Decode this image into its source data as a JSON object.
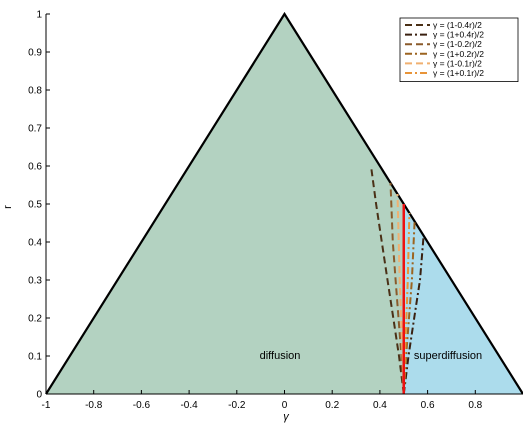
{
  "chart_data": {
    "type": "line",
    "xlabel": "γ",
    "ylabel": "r",
    "xlim": [
      -1,
      1
    ],
    "ylim": [
      0,
      1
    ],
    "x_ticks": [
      -1,
      -0.8,
      -0.6,
      -0.4,
      -0.2,
      0,
      0.2,
      0.4,
      0.6,
      0.8
    ],
    "y_ticks": [
      0,
      0.1,
      0.2,
      0.3,
      0.4,
      0.5,
      0.6,
      0.7,
      0.8,
      0.9,
      1
    ],
    "grid": false,
    "legend_position": "top-right",
    "regions": [
      {
        "label": "diffusion",
        "color": "#b3d2c1",
        "polygon": [
          [
            -1,
            0
          ],
          [
            0,
            1
          ],
          [
            0.5,
            0.5
          ],
          [
            0.5,
            0
          ]
        ]
      },
      {
        "label": "superdiffusion",
        "color": "#acdcec",
        "polygon": [
          [
            0.5,
            0
          ],
          [
            0.5,
            0.5
          ],
          [
            1,
            0
          ]
        ]
      }
    ],
    "boundary": {
      "color": "#ee1111",
      "x": [
        0.5,
        0.5
      ],
      "y": [
        0,
        0.5
      ]
    },
    "series": [
      {
        "name": "γ = (1-0.4r)/2",
        "color": "#4a3016",
        "dash": "long",
        "x": [
          0.5,
          0.48,
          0.456,
          0.432,
          0.408,
          0.384,
          0.3625
        ],
        "y": [
          0,
          0.1,
          0.2,
          0.3,
          0.4,
          0.5,
          0.6
        ]
      },
      {
        "name": "γ = (1+0.4r)/2",
        "color": "#3a2010",
        "dash": "dashdot",
        "x": [
          0.5,
          0.52,
          0.544,
          0.568,
          0.5833
        ],
        "y": [
          0,
          0.1,
          0.2,
          0.3,
          0.4167
        ]
      },
      {
        "name": "γ = (1-0.2r)/2",
        "color": "#8a5a2a",
        "dash": "long",
        "x": [
          0.5,
          0.49,
          0.478,
          0.466,
          0.454,
          0.4444
        ],
        "y": [
          0,
          0.1,
          0.2,
          0.3,
          0.4,
          0.5556
        ]
      },
      {
        "name": "γ = (1+0.2r)/2",
        "color": "#9c6420",
        "dash": "dashdot",
        "x": [
          0.5,
          0.51,
          0.522,
          0.534,
          0.5455
        ],
        "y": [
          0,
          0.1,
          0.2,
          0.3,
          0.4545
        ]
      },
      {
        "name": "γ = (1-0.1r)/2",
        "color": "#f0b070",
        "dash": "long",
        "x": [
          0.5,
          0.495,
          0.489,
          0.483,
          0.4737
        ],
        "y": [
          0,
          0.1,
          0.2,
          0.3,
          0.5263
        ]
      },
      {
        "name": "γ = (1+0.1r)/2",
        "color": "#e89438",
        "dash": "dashdot",
        "x": [
          0.5,
          0.505,
          0.511,
          0.517,
          0.5238
        ],
        "y": [
          0,
          0.1,
          0.2,
          0.3,
          0.4762
        ]
      }
    ]
  }
}
